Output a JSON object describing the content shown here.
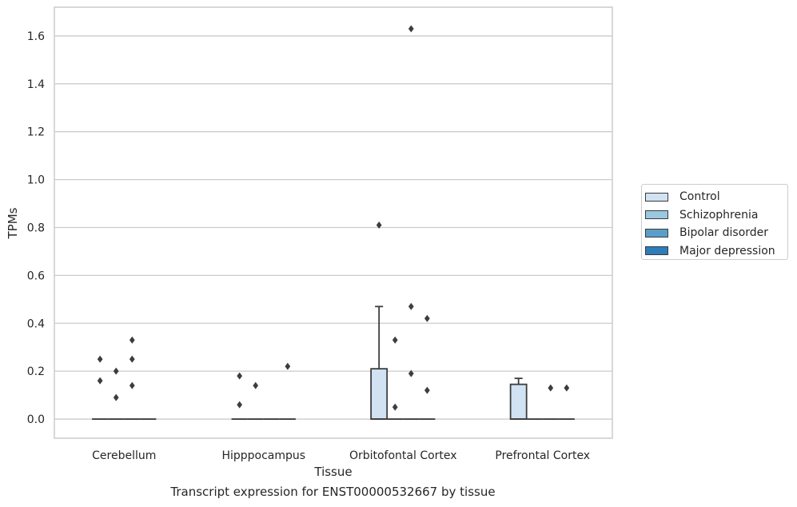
{
  "chart_data": {
    "type": "box",
    "xlabel": "Tissue",
    "ylabel": "TPMs",
    "caption": "Transcript expression for ENST00000532667 by tissue",
    "ylim": [
      -0.08,
      1.72
    ],
    "yticks": [
      0.0,
      0.2,
      0.4,
      0.6,
      0.8,
      1.0,
      1.2,
      1.4,
      1.6
    ],
    "ytick_labels": [
      "0.0",
      "0.2",
      "0.4",
      "0.6",
      "0.8",
      "1.0",
      "1.2",
      "1.4",
      "1.6"
    ],
    "grid": true,
    "legend_position": "right",
    "categories": [
      "Cerebellum",
      "Hipppocampus",
      "Orbitofontal Cortex",
      "Prefrontal Cortex"
    ],
    "series": [
      {
        "name": "Control",
        "color": "#d1e2f2",
        "boxes": [
          {
            "q1": 0,
            "median": 0,
            "q3": 0,
            "whislo": 0,
            "whishi": 0,
            "fliers": [
              0.16,
              0.25
            ]
          },
          {
            "q1": 0,
            "median": 0,
            "q3": 0,
            "whislo": 0,
            "whishi": 0,
            "fliers": [
              0.06,
              0.18
            ]
          },
          {
            "q1": 0,
            "median": 0,
            "q3": 0.21,
            "whislo": 0,
            "whishi": 0.47,
            "fliers": [
              0.81
            ]
          },
          {
            "q1": 0,
            "median": 0,
            "q3": 0.145,
            "whislo": 0,
            "whishi": 0.17,
            "fliers": []
          }
        ]
      },
      {
        "name": "Schizophrenia",
        "color": "#9ac8e0",
        "boxes": [
          {
            "q1": 0,
            "median": 0,
            "q3": 0,
            "whislo": 0,
            "whishi": 0,
            "fliers": [
              0.09,
              0.2
            ]
          },
          {
            "q1": 0,
            "median": 0,
            "q3": 0,
            "whislo": 0,
            "whishi": 0,
            "fliers": [
              0.14
            ]
          },
          {
            "q1": 0,
            "median": 0,
            "q3": 0,
            "whislo": 0,
            "whishi": 0,
            "fliers": [
              0.05,
              0.33
            ]
          },
          {
            "q1": 0,
            "median": 0,
            "q3": 0,
            "whislo": 0,
            "whishi": 0,
            "fliers": []
          }
        ]
      },
      {
        "name": "Bipolar disorder",
        "color": "#5a9ec9",
        "boxes": [
          {
            "q1": 0,
            "median": 0,
            "q3": 0,
            "whislo": 0,
            "whishi": 0,
            "fliers": [
              0.14,
              0.25,
              0.33
            ]
          },
          {
            "q1": 0,
            "median": 0,
            "q3": 0,
            "whislo": 0,
            "whishi": 0,
            "fliers": []
          },
          {
            "q1": 0,
            "median": 0,
            "q3": 0,
            "whislo": 0,
            "whishi": 0,
            "fliers": [
              0.19,
              0.47,
              1.63
            ]
          },
          {
            "q1": 0,
            "median": 0,
            "q3": 0,
            "whislo": 0,
            "whishi": 0,
            "fliers": [
              0.13
            ]
          }
        ]
      },
      {
        "name": "Major depression",
        "color": "#2d7dbb",
        "boxes": [
          {
            "q1": 0,
            "median": 0,
            "q3": 0,
            "whislo": 0,
            "whishi": 0,
            "fliers": []
          },
          {
            "q1": 0,
            "median": 0,
            "q3": 0,
            "whislo": 0,
            "whishi": 0,
            "fliers": [
              0.22
            ]
          },
          {
            "q1": 0,
            "median": 0,
            "q3": 0,
            "whislo": 0,
            "whishi": 0,
            "fliers": [
              0.12,
              0.42
            ]
          },
          {
            "q1": 0,
            "median": 0,
            "q3": 0,
            "whislo": 0,
            "whishi": 0,
            "fliers": [
              0.13
            ]
          }
        ]
      }
    ]
  }
}
